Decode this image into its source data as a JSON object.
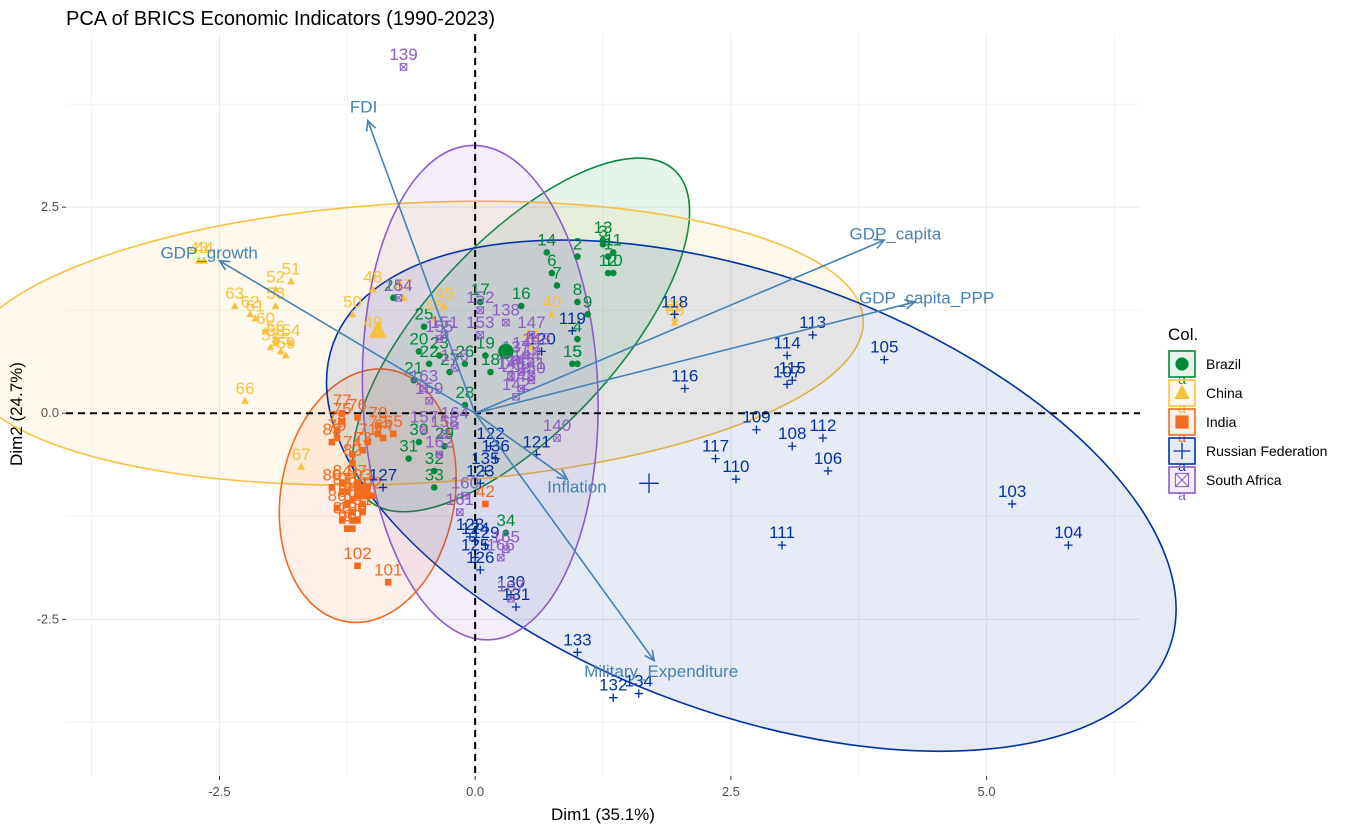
{
  "chart_data": {
    "type": "scatter",
    "title": "PCA of BRICS Economic Indicators (1990-2023)",
    "xlabel": "Dim1 (35.1%)",
    "ylabel": "Dim2 (24.7%)",
    "xlim": [
      -4.0,
      6.5
    ],
    "ylim": [
      -4.4,
      4.6
    ],
    "x_ticks": [
      -2.5,
      0.0,
      2.5,
      5.0
    ],
    "x_tick_labels": [
      "-2.5",
      "0.0",
      "2.5",
      "5.0"
    ],
    "y_ticks": [
      -2.5,
      0.0,
      2.5
    ],
    "y_tick_labels": [
      "-2.5",
      "0.0",
      "2.5"
    ],
    "grid": true,
    "reference_lines": {
      "x": 0,
      "y": 0,
      "style": "dashed"
    },
    "legend": {
      "title": "Col.",
      "position": "right"
    },
    "groups": [
      {
        "name": "Brazil",
        "color": "#008b3a",
        "marker": "circle",
        "ellipse": {
          "center": [
            0.45,
            0.95
          ],
          "rx": 2.2,
          "ry": 1.15,
          "angle_deg": 47
        },
        "points": [
          {
            "label": "1",
            "x": 1.3,
            "y": 1.9
          },
          {
            "label": "2",
            "x": 1.0,
            "y": 1.9
          },
          {
            "label": "3",
            "x": 1.25,
            "y": 2.05
          },
          {
            "label": "4",
            "x": 1.0,
            "y": 0.9
          },
          {
            "label": "5",
            "x": 1.0,
            "y": 0.6
          },
          {
            "label": "6",
            "x": 0.75,
            "y": 1.7
          },
          {
            "label": "7",
            "x": 0.8,
            "y": 1.55
          },
          {
            "label": "8",
            "x": 1.0,
            "y": 1.35
          },
          {
            "label": "9",
            "x": 1.1,
            "y": 1.2
          },
          {
            "label": "10",
            "x": 1.35,
            "y": 1.7
          },
          {
            "label": "11",
            "x": 1.35,
            "y": 1.95
          },
          {
            "label": "12",
            "x": 1.3,
            "y": 1.7
          },
          {
            "label": "13",
            "x": 1.25,
            "y": 2.1
          },
          {
            "label": "14",
            "x": 0.7,
            "y": 1.95
          },
          {
            "label": "15",
            "x": 0.95,
            "y": 0.6
          },
          {
            "label": "16",
            "x": 0.45,
            "y": 1.3
          },
          {
            "label": "17",
            "x": 0.05,
            "y": 1.35
          },
          {
            "label": "18",
            "x": 0.15,
            "y": 0.5
          },
          {
            "label": "19",
            "x": 0.1,
            "y": 0.7
          },
          {
            "label": "20",
            "x": -0.55,
            "y": 0.75
          },
          {
            "label": "21",
            "x": -0.6,
            "y": 0.4
          },
          {
            "label": "22",
            "x": -0.45,
            "y": 0.6
          },
          {
            "label": "23",
            "x": -0.35,
            "y": 0.7
          },
          {
            "label": "24",
            "x": -0.8,
            "y": 1.4
          },
          {
            "label": "25",
            "x": -0.5,
            "y": 1.05
          },
          {
            "label": "26",
            "x": -0.1,
            "y": 0.6
          },
          {
            "label": "27",
            "x": -0.25,
            "y": 0.5
          },
          {
            "label": "28",
            "x": -0.1,
            "y": 0.1
          },
          {
            "label": "29",
            "x": -0.3,
            "y": -0.4
          },
          {
            "label": "30",
            "x": -0.55,
            "y": -0.35
          },
          {
            "label": "31",
            "x": -0.65,
            "y": -0.55
          },
          {
            "label": "32",
            "x": -0.4,
            "y": -0.7
          },
          {
            "label": "33",
            "x": -0.4,
            "y": -0.9
          },
          {
            "label": "34",
            "x": 0.3,
            "y": -1.45
          }
        ]
      },
      {
        "name": "China",
        "color": "#f5c242",
        "marker": "triangle",
        "ellipse": {
          "center": [
            -0.6,
            0.85
          ],
          "rx": 4.4,
          "ry": 1.7,
          "angle_deg": 3
        },
        "points": [
          {
            "label": "43",
            "x": -2.7,
            "y": 1.85
          },
          {
            "label": "44",
            "x": -2.65,
            "y": 1.85
          },
          {
            "label": "45",
            "x": -0.3,
            "y": 1.3
          },
          {
            "label": "46",
            "x": -0.4,
            "y": 1.15
          },
          {
            "label": "47",
            "x": -0.7,
            "y": 1.4
          },
          {
            "label": "48",
            "x": -1.0,
            "y": 1.5
          },
          {
            "label": "49",
            "x": -1.0,
            "y": 0.95
          },
          {
            "label": "50",
            "x": -1.2,
            "y": 1.2
          },
          {
            "label": "51",
            "x": -1.8,
            "y": 1.6
          },
          {
            "label": "52",
            "x": -1.95,
            "y": 1.5
          },
          {
            "label": "53",
            "x": -1.95,
            "y": 1.3
          },
          {
            "label": "54",
            "x": -1.8,
            "y": 0.85
          },
          {
            "label": "55",
            "x": -1.9,
            "y": 0.75
          },
          {
            "label": "56",
            "x": -1.95,
            "y": 0.9
          },
          {
            "label": "57",
            "x": -2.0,
            "y": 0.8
          },
          {
            "label": "58",
            "x": -1.95,
            "y": 0.85
          },
          {
            "label": "59",
            "x": -1.85,
            "y": 0.7
          },
          {
            "label": "60",
            "x": -2.05,
            "y": 1.0
          },
          {
            "label": "61",
            "x": -2.15,
            "y": 1.15
          },
          {
            "label": "62",
            "x": -2.2,
            "y": 1.2
          },
          {
            "label": "63",
            "x": -2.35,
            "y": 1.3
          },
          {
            "label": "66",
            "x": -2.25,
            "y": 0.15
          },
          {
            "label": "67",
            "x": -1.7,
            "y": -0.65
          },
          {
            "label": "68",
            "x": 1.95,
            "y": 1.1
          },
          {
            "label": "69",
            "x": 1.95,
            "y": 1.15
          },
          {
            "label": "40",
            "x": 0.75,
            "y": 1.2
          },
          {
            "label": "41",
            "x": 0.55,
            "y": 0.8
          }
        ]
      },
      {
        "name": "India",
        "color": "#f26b21",
        "marker": "square",
        "ellipse": {
          "center": [
            -1.05,
            -1.0
          ],
          "rx": 0.85,
          "ry": 1.55,
          "angle_deg": -10
        },
        "points": [
          {
            "label": "71",
            "x": -1.05,
            "y": -0.35
          },
          {
            "label": "72",
            "x": -0.95,
            "y": -0.25
          },
          {
            "label": "73",
            "x": -1.1,
            "y": -0.45
          },
          {
            "label": "74",
            "x": -1.2,
            "y": -0.5
          },
          {
            "label": "75",
            "x": -1.3,
            "y": -0.1
          },
          {
            "label": "76",
            "x": -1.15,
            "y": -0.05
          },
          {
            "label": "77",
            "x": -1.3,
            "y": 0.0
          },
          {
            "label": "78",
            "x": -1.35,
            "y": -0.2
          },
          {
            "label": "79",
            "x": -1.35,
            "y": -0.3
          },
          {
            "label": "80",
            "x": -1.4,
            "y": -0.9
          },
          {
            "label": "81",
            "x": -1.3,
            "y": -0.95
          },
          {
            "label": "82",
            "x": -1.2,
            "y": -0.6
          },
          {
            "label": "83",
            "x": -1.4,
            "y": -0.35
          },
          {
            "label": "84",
            "x": -1.3,
            "y": -0.85
          },
          {
            "label": "85",
            "x": -1.25,
            "y": -1.1
          },
          {
            "label": "86",
            "x": -1.35,
            "y": -1.15
          },
          {
            "label": "87",
            "x": -1.2,
            "y": -1.05
          },
          {
            "label": "88",
            "x": -1.3,
            "y": -1.3
          },
          {
            "label": "89",
            "x": -1.15,
            "y": -1.3
          },
          {
            "label": "90",
            "x": -1.25,
            "y": -1.4
          },
          {
            "label": "91",
            "x": -1.1,
            "y": -1.2
          },
          {
            "label": "92",
            "x": -1.0,
            "y": -1.0
          },
          {
            "label": "93",
            "x": -1.1,
            "y": -0.9
          },
          {
            "label": "94",
            "x": -1.15,
            "y": -1.0
          },
          {
            "label": "95",
            "x": -1.2,
            "y": -1.2
          },
          {
            "label": "96",
            "x": -1.25,
            "y": -0.95
          },
          {
            "label": "97",
            "x": -1.15,
            "y": -0.85
          },
          {
            "label": "98",
            "x": -1.1,
            "y": -1.1
          },
          {
            "label": "99",
            "x": -1.2,
            "y": -1.4
          },
          {
            "label": "100",
            "x": -1.2,
            "y": -1.3
          },
          {
            "label": "101",
            "x": -0.85,
            "y": -2.05
          },
          {
            "label": "102",
            "x": -1.15,
            "y": -1.85
          },
          {
            "label": "64",
            "x": -0.9,
            "y": -0.3
          },
          {
            "label": "65",
            "x": -0.8,
            "y": -0.25
          },
          {
            "label": "70",
            "x": -0.95,
            "y": -0.15
          },
          {
            "label": "42",
            "x": 0.1,
            "y": -1.1
          }
        ]
      },
      {
        "name": "Russian Federation",
        "color": "#0033a0",
        "marker": "plus",
        "ellipse": {
          "center": [
            2.7,
            -1.0
          ],
          "rx": 4.35,
          "ry": 2.65,
          "angle_deg": -20
        },
        "points": [
          {
            "label": "103",
            "x": 5.25,
            "y": -1.1
          },
          {
            "label": "104",
            "x": 5.8,
            "y": -1.6
          },
          {
            "label": "105",
            "x": 4.0,
            "y": 0.65
          },
          {
            "label": "106",
            "x": 3.45,
            "y": -0.7
          },
          {
            "label": "107",
            "x": 3.05,
            "y": 0.35
          },
          {
            "label": "108",
            "x": 3.1,
            "y": -0.4
          },
          {
            "label": "109",
            "x": 2.75,
            "y": -0.2
          },
          {
            "label": "110",
            "x": 2.55,
            "y": -0.8
          },
          {
            "label": "111",
            "x": 3.0,
            "y": -1.6
          },
          {
            "label": "112",
            "x": 3.4,
            "y": -0.3
          },
          {
            "label": "113",
            "x": 3.3,
            "y": 0.95
          },
          {
            "label": "114",
            "x": 3.05,
            "y": 0.7
          },
          {
            "label": "115",
            "x": 3.1,
            "y": 0.4
          },
          {
            "label": "116",
            "x": 2.05,
            "y": 0.3
          },
          {
            "label": "117",
            "x": 2.35,
            "y": -0.55
          },
          {
            "label": "118",
            "x": 1.95,
            "y": 1.2
          },
          {
            "label": "119",
            "x": 0.95,
            "y": 1.0
          },
          {
            "label": "120",
            "x": 0.65,
            "y": 0.75
          },
          {
            "label": "121",
            "x": 0.6,
            "y": -0.5
          },
          {
            "label": "122",
            "x": 0.15,
            "y": -0.4
          },
          {
            "label": "123",
            "x": 0.05,
            "y": -0.85
          },
          {
            "label": "124",
            "x": 0.0,
            "y": -1.55
          },
          {
            "label": "125",
            "x": 0.0,
            "y": -1.75
          },
          {
            "label": "126",
            "x": 0.05,
            "y": -1.9
          },
          {
            "label": "127",
            "x": -0.9,
            "y": -0.9
          },
          {
            "label": "128",
            "x": -0.05,
            "y": -1.5
          },
          {
            "label": "129",
            "x": 0.1,
            "y": -1.6
          },
          {
            "label": "130",
            "x": 0.35,
            "y": -2.2
          },
          {
            "label": "131",
            "x": 0.4,
            "y": -2.35
          },
          {
            "label": "132",
            "x": 1.35,
            "y": -3.45
          },
          {
            "label": "133",
            "x": 1.0,
            "y": -2.9
          },
          {
            "label": "134",
            "x": 1.6,
            "y": -3.4
          },
          {
            "label": "135",
            "x": 0.1,
            "y": -0.7
          },
          {
            "label": "136",
            "x": 0.2,
            "y": -0.55
          }
        ]
      },
      {
        "name": "South Africa",
        "color": "#8e5cc2",
        "marker": "square-x",
        "ellipse": {
          "center": [
            0.05,
            0.25
          ],
          "rx": 1.15,
          "ry": 3.0,
          "angle_deg": 2
        },
        "points": [
          {
            "label": "137",
            "x": 0.4,
            "y": 0.65
          },
          {
            "label": "138",
            "x": 0.3,
            "y": 1.1
          },
          {
            "label": "139",
            "x": -0.7,
            "y": 4.2
          },
          {
            "label": "140",
            "x": 0.8,
            "y": -0.3
          },
          {
            "label": "141",
            "x": 0.55,
            "y": 0.45
          },
          {
            "label": "142",
            "x": 0.4,
            "y": 0.2
          },
          {
            "label": "143",
            "x": 0.45,
            "y": 0.3
          },
          {
            "label": "144",
            "x": 0.5,
            "y": 0.55
          },
          {
            "label": "145",
            "x": 0.45,
            "y": 0.5
          },
          {
            "label": "146",
            "x": 0.35,
            "y": 0.45
          },
          {
            "label": "147",
            "x": 0.55,
            "y": 0.95
          },
          {
            "label": "148",
            "x": 0.6,
            "y": 0.75
          },
          {
            "label": "149",
            "x": 0.5,
            "y": 0.7
          },
          {
            "label": "150",
            "x": 0.55,
            "y": 0.4
          },
          {
            "label": "151",
            "x": -0.3,
            "y": 0.95
          },
          {
            "label": "152",
            "x": 0.05,
            "y": 1.25
          },
          {
            "label": "153",
            "x": 0.05,
            "y": 0.95
          },
          {
            "label": "154",
            "x": -0.75,
            "y": 1.4
          },
          {
            "label": "155",
            "x": -0.35,
            "y": 0.9
          },
          {
            "label": "156",
            "x": -0.2,
            "y": 0.55
          },
          {
            "label": "157",
            "x": -0.5,
            "y": -0.2
          },
          {
            "label": "158",
            "x": -0.3,
            "y": -0.25
          },
          {
            "label": "159",
            "x": -0.45,
            "y": 0.15
          },
          {
            "label": "160",
            "x": -0.1,
            "y": -1.0
          },
          {
            "label": "161",
            "x": -0.15,
            "y": -1.2
          },
          {
            "label": "162",
            "x": -0.35,
            "y": -0.5
          },
          {
            "label": "163",
            "x": -0.5,
            "y": 0.3
          },
          {
            "label": "164",
            "x": -0.2,
            "y": -0.15
          },
          {
            "label": "165",
            "x": 0.3,
            "y": -1.65
          },
          {
            "label": "166",
            "x": 0.25,
            "y": -1.75
          },
          {
            "label": "167",
            "x": 0.35,
            "y": -2.25
          }
        ]
      }
    ],
    "variables": [
      {
        "name": "FDI",
        "x": -1.05,
        "y": 3.55
      },
      {
        "name": "GDP_growth",
        "x": -2.5,
        "y": 1.85
      },
      {
        "name": "GDP_capita",
        "x": 4.0,
        "y": 2.1
      },
      {
        "name": "GDP_capita_PPP",
        "x": 4.3,
        "y": 1.35
      },
      {
        "name": "Inflation",
        "x": 0.9,
        "y": -0.8
      },
      {
        "name": "Military_Expenditure",
        "x": 1.75,
        "y": -3.0
      }
    ],
    "group_means": [
      {
        "group": "Brazil",
        "x": 0.3,
        "y": 0.75
      },
      {
        "group": "China",
        "x": -0.95,
        "y": 1.0
      },
      {
        "group": "India",
        "x": -1.1,
        "y": -0.95
      },
      {
        "group": "Russian Federation",
        "x": 1.7,
        "y": -0.85
      },
      {
        "group": "South Africa",
        "x": 0.35,
        "y": 0.6
      }
    ]
  }
}
